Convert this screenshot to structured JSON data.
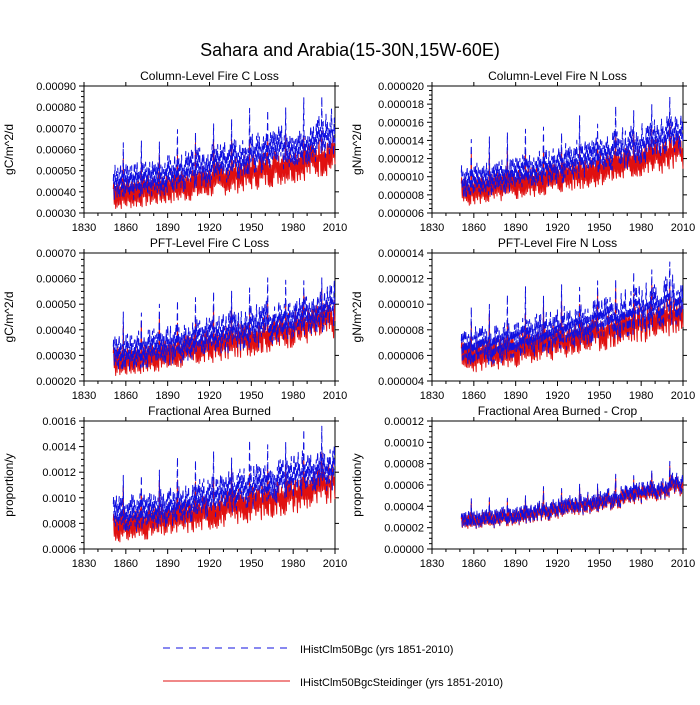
{
  "title": "Sahara and Arabia(15-30N,15W-60E)",
  "colors": {
    "series_a": "#1010e0",
    "series_b": "#e01010",
    "axis": "#000000"
  },
  "legend": {
    "items": [
      {
        "label": "IHistClm50Bgc (yrs 1851-2010)",
        "style": "dashed",
        "color": "#1010e0"
      },
      {
        "label": "IHistClm50BgcSteidinger (yrs 1851-2010)",
        "style": "solid",
        "color": "#e01010"
      }
    ]
  },
  "chart_data": [
    {
      "type": "line",
      "title": "Column-Level Fire C Loss",
      "ylabel": "gC/m^2/d",
      "xlim": [
        1830,
        2010
      ],
      "xticks": [
        "1830",
        "1860",
        "1890",
        "1920",
        "1950",
        "1980",
        "2010"
      ],
      "ylim": [
        0.0003,
        0.0009
      ],
      "yticks": [
        "0.00030",
        "0.00040",
        "0.00050",
        "0.00060",
        "0.00070",
        "0.00080",
        "0.00090"
      ],
      "x": [
        1851,
        2010
      ],
      "series": [
        {
          "name": "IHistClm50Bgc",
          "style": "dashed",
          "start": 0.00043,
          "end": 0.00066,
          "amplitude": 0.00012,
          "min": 0.00036,
          "max": 0.00088,
          "seed": 3
        },
        {
          "name": "IHistClm50BgcSteidinger",
          "style": "solid",
          "start": 0.00038,
          "end": 0.00056,
          "amplitude": 0.0001,
          "min": 0.00031,
          "max": 0.00073,
          "seed": 7
        }
      ]
    },
    {
      "type": "line",
      "title": "Column-Level Fire N Loss",
      "ylabel": "gN/m^2/d",
      "xlim": [
        1830,
        2010
      ],
      "xticks": [
        "1830",
        "1860",
        "1890",
        "1920",
        "1950",
        "1980",
        "2010"
      ],
      "ylim": [
        6e-06,
        2e-05
      ],
      "yticks": [
        "0.000006",
        "0.000008",
        "0.000010",
        "0.000012",
        "0.000014",
        "0.000016",
        "0.000018",
        "0.000020"
      ],
      "x": [
        1851,
        2010
      ],
      "series": [
        {
          "name": "IHistClm50Bgc",
          "style": "dashed",
          "start": 9.2e-06,
          "end": 1.45e-05,
          "amplitude": 2.6e-06,
          "min": 7.6e-06,
          "max": 1.88e-05,
          "seed": 11
        },
        {
          "name": "IHistClm50BgcSteidinger",
          "style": "solid",
          "start": 8.2e-06,
          "end": 1.25e-05,
          "amplitude": 2.2e-06,
          "min": 6.8e-06,
          "max": 1.62e-05,
          "seed": 5
        }
      ]
    },
    {
      "type": "line",
      "title": "PFT-Level Fire C Loss",
      "ylabel": "gC/m^2/d",
      "xlim": [
        1830,
        2010
      ],
      "xticks": [
        "1830",
        "1860",
        "1890",
        "1920",
        "1950",
        "1980",
        "2010"
      ],
      "ylim": [
        0.0002,
        0.0007
      ],
      "yticks": [
        "0.00020",
        "0.00030",
        "0.00040",
        "0.00050",
        "0.00060",
        "0.00070"
      ],
      "x": [
        1851,
        2010
      ],
      "series": [
        {
          "name": "IHistClm50Bgc",
          "style": "dashed",
          "start": 0.0003,
          "end": 0.00048,
          "amplitude": 0.0001,
          "min": 0.00024,
          "max": 0.00063,
          "seed": 13
        },
        {
          "name": "IHistClm50BgcSteidinger",
          "style": "solid",
          "start": 0.00027,
          "end": 0.00043,
          "amplitude": 8e-05,
          "min": 0.00022,
          "max": 0.00056,
          "seed": 17
        }
      ]
    },
    {
      "type": "line",
      "title": "PFT-Level Fire N Loss",
      "ylabel": "gN/m^2/d",
      "xlim": [
        1830,
        2010
      ],
      "xticks": [
        "1830",
        "1860",
        "1890",
        "1920",
        "1950",
        "1980",
        "2010"
      ],
      "ylim": [
        4e-06,
        1.4e-05
      ],
      "yticks": [
        "0.000004",
        "0.000006",
        "0.000008",
        "0.000010",
        "0.000012",
        "0.000014"
      ],
      "x": [
        1851,
        2010
      ],
      "series": [
        {
          "name": "IHistClm50Bgc",
          "style": "dashed",
          "start": 6.4e-06,
          "end": 1.02e-05,
          "amplitude": 2.1e-06,
          "min": 5.2e-06,
          "max": 1.33e-05,
          "seed": 19
        },
        {
          "name": "IHistClm50BgcSteidinger",
          "style": "solid",
          "start": 5.7e-06,
          "end": 9e-06,
          "amplitude": 1.7e-06,
          "min": 4.7e-06,
          "max": 1.16e-05,
          "seed": 23
        }
      ]
    },
    {
      "type": "line",
      "title": "Fractional Area Burned",
      "ylabel": "proportion/y",
      "xlim": [
        1830,
        2010
      ],
      "xticks": [
        "1830",
        "1860",
        "1890",
        "1920",
        "1950",
        "1980",
        "2010"
      ],
      "ylim": [
        0.0006,
        0.0016
      ],
      "yticks": [
        "0.0006",
        "0.0008",
        "0.0010",
        "0.0012",
        "0.0014",
        "0.0016"
      ],
      "x": [
        1851,
        2010
      ],
      "series": [
        {
          "name": "IHistClm50Bgc",
          "style": "dashed",
          "start": 0.00085,
          "end": 0.00122,
          "amplitude": 0.0002,
          "min": 0.00072,
          "max": 0.00156,
          "seed": 29
        },
        {
          "name": "IHistClm50BgcSteidinger",
          "style": "solid",
          "start": 0.00076,
          "end": 0.00108,
          "amplitude": 0.00017,
          "min": 0.00064,
          "max": 0.00136,
          "seed": 31
        }
      ]
    },
    {
      "type": "line",
      "title": "Fractional Area Burned - Crop",
      "ylabel": "proportion/y",
      "xlim": [
        1830,
        2010
      ],
      "xticks": [
        "1830",
        "1860",
        "1890",
        "1920",
        "1950",
        "1980",
        "2010"
      ],
      "ylim": [
        0,
        0.00012
      ],
      "yticks": [
        "0.00000",
        "0.00002",
        "0.00004",
        "0.00006",
        "0.00008",
        "0.00010",
        "0.00012"
      ],
      "x": [
        1851,
        2010
      ],
      "series": [
        {
          "name": "IHistClm50Bgc",
          "style": "dashed",
          "start": 2.5e-05,
          "end": 6e-05,
          "amplitude": 1.2e-05,
          "min": 1.8e-05,
          "max": 0.000102,
          "seed": 37
        },
        {
          "name": "IHistClm50BgcSteidinger",
          "style": "solid",
          "start": 2.4e-05,
          "end": 5.8e-05,
          "amplitude": 1.1e-05,
          "min": 1.7e-05,
          "max": 9.8e-05,
          "seed": 37
        }
      ]
    }
  ]
}
